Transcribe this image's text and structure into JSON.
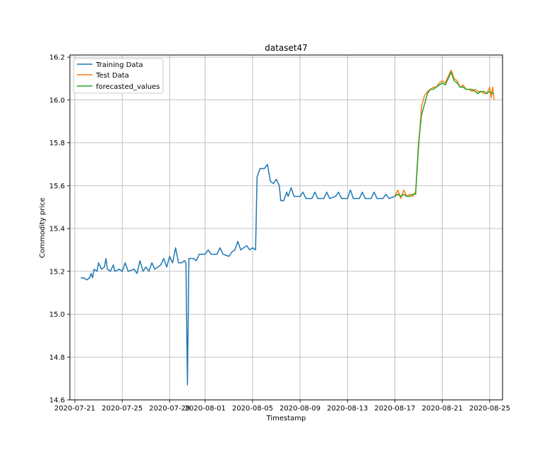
{
  "chart_data": {
    "type": "line",
    "title": "dataset47",
    "xlabel": "Timestamp",
    "ylabel": "Commodity price",
    "xlim": [
      "2020-07-20T14:00",
      "2020-08-26T02:00"
    ],
    "ylim": [
      14.6,
      16.21
    ],
    "x_ticks": [
      "2020-07-21",
      "2020-07-25",
      "2020-07-29",
      "2020-08-01",
      "2020-08-05",
      "2020-08-09",
      "2020-08-13",
      "2020-08-17",
      "2020-08-21",
      "2020-08-25"
    ],
    "y_ticks": [
      "14.6",
      "14.8",
      "15.0",
      "15.2",
      "15.4",
      "15.6",
      "15.8",
      "16.0",
      "16.2"
    ],
    "grid": true,
    "legend": {
      "placement": "top-left",
      "entries": [
        "Training Data",
        "Test Data",
        "forecasted_values"
      ]
    },
    "series": [
      {
        "name": "Training Data",
        "color": "#1f77b4",
        "points": [
          [
            "2020-07-21T12:00",
            15.17
          ],
          [
            "2020-07-21T18:00",
            15.17
          ],
          [
            "2020-07-22T00:00",
            15.16
          ],
          [
            "2020-07-22T06:00",
            15.17
          ],
          [
            "2020-07-22T09:00",
            15.19
          ],
          [
            "2020-07-22T12:00",
            15.17
          ],
          [
            "2020-07-22T15:00",
            15.21
          ],
          [
            "2020-07-22T21:00",
            15.2
          ],
          [
            "2020-07-23T00:00",
            15.24
          ],
          [
            "2020-07-23T06:00",
            15.21
          ],
          [
            "2020-07-23T12:00",
            15.22
          ],
          [
            "2020-07-23T15:00",
            15.26
          ],
          [
            "2020-07-23T18:00",
            15.21
          ],
          [
            "2020-07-24T00:00",
            15.2
          ],
          [
            "2020-07-24T06:00",
            15.23
          ],
          [
            "2020-07-24T09:00",
            15.2
          ],
          [
            "2020-07-24T18:00",
            15.21
          ],
          [
            "2020-07-25T00:00",
            15.2
          ],
          [
            "2020-07-25T06:00",
            15.24
          ],
          [
            "2020-07-25T12:00",
            15.2
          ],
          [
            "2020-07-26T00:00",
            15.21
          ],
          [
            "2020-07-26T06:00",
            15.19
          ],
          [
            "2020-07-26T12:00",
            15.25
          ],
          [
            "2020-07-26T18:00",
            15.2
          ],
          [
            "2020-07-27T00:00",
            15.22
          ],
          [
            "2020-07-27T06:00",
            15.2
          ],
          [
            "2020-07-27T12:00",
            15.24
          ],
          [
            "2020-07-27T18:00",
            15.21
          ],
          [
            "2020-07-28T00:00",
            15.22
          ],
          [
            "2020-07-28T06:00",
            15.23
          ],
          [
            "2020-07-28T12:00",
            15.26
          ],
          [
            "2020-07-28T18:00",
            15.22
          ],
          [
            "2020-07-29T00:00",
            15.27
          ],
          [
            "2020-07-29T06:00",
            15.24
          ],
          [
            "2020-07-29T12:00",
            15.31
          ],
          [
            "2020-07-29T18:00",
            15.24
          ],
          [
            "2020-07-30T00:00",
            15.24
          ],
          [
            "2020-07-30T06:00",
            15.25
          ],
          [
            "2020-07-30T09:00",
            15.24
          ],
          [
            "2020-07-30T12:00",
            14.67
          ],
          [
            "2020-07-30T15:00",
            15.26
          ],
          [
            "2020-07-31T00:00",
            15.26
          ],
          [
            "2020-07-31T06:00",
            15.25
          ],
          [
            "2020-07-31T12:00",
            15.28
          ],
          [
            "2020-08-01T00:00",
            15.28
          ],
          [
            "2020-08-01T06:00",
            15.3
          ],
          [
            "2020-08-01T12:00",
            15.28
          ],
          [
            "2020-08-02T00:00",
            15.28
          ],
          [
            "2020-08-02T06:00",
            15.31
          ],
          [
            "2020-08-02T12:00",
            15.28
          ],
          [
            "2020-08-03T00:00",
            15.27
          ],
          [
            "2020-08-03T06:00",
            15.29
          ],
          [
            "2020-08-03T12:00",
            15.3
          ],
          [
            "2020-08-03T18:00",
            15.34
          ],
          [
            "2020-08-04T00:00",
            15.3
          ],
          [
            "2020-08-04T12:00",
            15.32
          ],
          [
            "2020-08-04T18:00",
            15.3
          ],
          [
            "2020-08-05T00:00",
            15.31
          ],
          [
            "2020-08-05T06:00",
            15.3
          ],
          [
            "2020-08-05T09:00",
            15.64
          ],
          [
            "2020-08-05T15:00",
            15.68
          ],
          [
            "2020-08-06T00:00",
            15.68
          ],
          [
            "2020-08-06T06:00",
            15.7
          ],
          [
            "2020-08-06T12:00",
            15.62
          ],
          [
            "2020-08-06T18:00",
            15.61
          ],
          [
            "2020-08-07T00:00",
            15.63
          ],
          [
            "2020-08-07T06:00",
            15.6
          ],
          [
            "2020-08-07T09:00",
            15.53
          ],
          [
            "2020-08-07T15:00",
            15.53
          ],
          [
            "2020-08-07T21:00",
            15.57
          ],
          [
            "2020-08-08T00:00",
            15.55
          ],
          [
            "2020-08-08T06:00",
            15.59
          ],
          [
            "2020-08-08T12:00",
            15.55
          ],
          [
            "2020-08-09T00:00",
            15.55
          ],
          [
            "2020-08-09T06:00",
            15.57
          ],
          [
            "2020-08-09T12:00",
            15.54
          ],
          [
            "2020-08-10T00:00",
            15.54
          ],
          [
            "2020-08-10T06:00",
            15.57
          ],
          [
            "2020-08-10T12:00",
            15.54
          ],
          [
            "2020-08-11T00:00",
            15.54
          ],
          [
            "2020-08-11T06:00",
            15.57
          ],
          [
            "2020-08-11T12:00",
            15.54
          ],
          [
            "2020-08-12T00:00",
            15.55
          ],
          [
            "2020-08-12T06:00",
            15.57
          ],
          [
            "2020-08-12T12:00",
            15.54
          ],
          [
            "2020-08-13T00:00",
            15.54
          ],
          [
            "2020-08-13T06:00",
            15.58
          ],
          [
            "2020-08-13T12:00",
            15.54
          ],
          [
            "2020-08-14T00:00",
            15.54
          ],
          [
            "2020-08-14T06:00",
            15.57
          ],
          [
            "2020-08-14T12:00",
            15.54
          ],
          [
            "2020-08-15T00:00",
            15.54
          ],
          [
            "2020-08-15T06:00",
            15.57
          ],
          [
            "2020-08-15T12:00",
            15.54
          ],
          [
            "2020-08-16T00:00",
            15.54
          ],
          [
            "2020-08-16T06:00",
            15.56
          ],
          [
            "2020-08-16T12:00",
            15.54
          ],
          [
            "2020-08-17T00:00",
            15.55
          ]
        ]
      },
      {
        "name": "Test Data",
        "color": "#ff7f0e",
        "points": [
          [
            "2020-08-17T00:00",
            15.55
          ],
          [
            "2020-08-17T06:00",
            15.58
          ],
          [
            "2020-08-17T12:00",
            15.54
          ],
          [
            "2020-08-17T18:00",
            15.58
          ],
          [
            "2020-08-18T00:00",
            15.55
          ],
          [
            "2020-08-18T06:00",
            15.56
          ],
          [
            "2020-08-18T12:00",
            15.55
          ],
          [
            "2020-08-18T18:00",
            15.57
          ],
          [
            "2020-08-19T00:00",
            15.78
          ],
          [
            "2020-08-19T06:00",
            15.97
          ],
          [
            "2020-08-19T12:00",
            16.02
          ],
          [
            "2020-08-19T18:00",
            16.04
          ],
          [
            "2020-08-20T00:00",
            16.05
          ],
          [
            "2020-08-20T06:00",
            16.06
          ],
          [
            "2020-08-20T12:00",
            16.06
          ],
          [
            "2020-08-20T18:00",
            16.08
          ],
          [
            "2020-08-21T00:00",
            16.09
          ],
          [
            "2020-08-21T06:00",
            16.08
          ],
          [
            "2020-08-21T12:00",
            16.11
          ],
          [
            "2020-08-21T18:00",
            16.14
          ],
          [
            "2020-08-22T00:00",
            16.1
          ],
          [
            "2020-08-22T06:00",
            16.09
          ],
          [
            "2020-08-22T12:00",
            16.06
          ],
          [
            "2020-08-22T18:00",
            16.07
          ],
          [
            "2020-08-23T00:00",
            16.05
          ],
          [
            "2020-08-23T06:00",
            16.05
          ],
          [
            "2020-08-23T12:00",
            16.04
          ],
          [
            "2020-08-23T18:00",
            16.05
          ],
          [
            "2020-08-24T00:00",
            16.04
          ],
          [
            "2020-08-24T06:00",
            16.04
          ],
          [
            "2020-08-24T12:00",
            16.03
          ],
          [
            "2020-08-24T18:00",
            16.03
          ],
          [
            "2020-08-25T00:00",
            16.06
          ],
          [
            "2020-08-25T03:00",
            16.01
          ],
          [
            "2020-08-25T06:00",
            16.06
          ],
          [
            "2020-08-25T09:00",
            16.0
          ]
        ]
      },
      {
        "name": "forecasted_values",
        "color": "#2ca02c",
        "points": [
          [
            "2020-08-17T00:00",
            15.55
          ],
          [
            "2020-08-17T06:00",
            15.56
          ],
          [
            "2020-08-17T12:00",
            15.55
          ],
          [
            "2020-08-17T18:00",
            15.56
          ],
          [
            "2020-08-18T00:00",
            15.55
          ],
          [
            "2020-08-18T06:00",
            15.55
          ],
          [
            "2020-08-18T12:00",
            15.56
          ],
          [
            "2020-08-18T18:00",
            15.56
          ],
          [
            "2020-08-19T00:00",
            15.8
          ],
          [
            "2020-08-19T06:00",
            15.93
          ],
          [
            "2020-08-19T12:00",
            15.98
          ],
          [
            "2020-08-19T18:00",
            16.03
          ],
          [
            "2020-08-20T00:00",
            16.05
          ],
          [
            "2020-08-20T06:00",
            16.05
          ],
          [
            "2020-08-20T12:00",
            16.06
          ],
          [
            "2020-08-20T18:00",
            16.07
          ],
          [
            "2020-08-21T00:00",
            16.08
          ],
          [
            "2020-08-21T06:00",
            16.07
          ],
          [
            "2020-08-21T12:00",
            16.1
          ],
          [
            "2020-08-21T18:00",
            16.13
          ],
          [
            "2020-08-22T00:00",
            16.09
          ],
          [
            "2020-08-22T06:00",
            16.08
          ],
          [
            "2020-08-22T12:00",
            16.06
          ],
          [
            "2020-08-22T18:00",
            16.06
          ],
          [
            "2020-08-23T00:00",
            16.05
          ],
          [
            "2020-08-23T06:00",
            16.05
          ],
          [
            "2020-08-23T12:00",
            16.05
          ],
          [
            "2020-08-23T18:00",
            16.04
          ],
          [
            "2020-08-24T00:00",
            16.03
          ],
          [
            "2020-08-24T06:00",
            16.04
          ],
          [
            "2020-08-24T12:00",
            16.04
          ],
          [
            "2020-08-24T18:00",
            16.03
          ],
          [
            "2020-08-25T00:00",
            16.04
          ],
          [
            "2020-08-25T06:00",
            16.03
          ],
          [
            "2020-08-25T09:00",
            16.03
          ]
        ]
      }
    ]
  }
}
